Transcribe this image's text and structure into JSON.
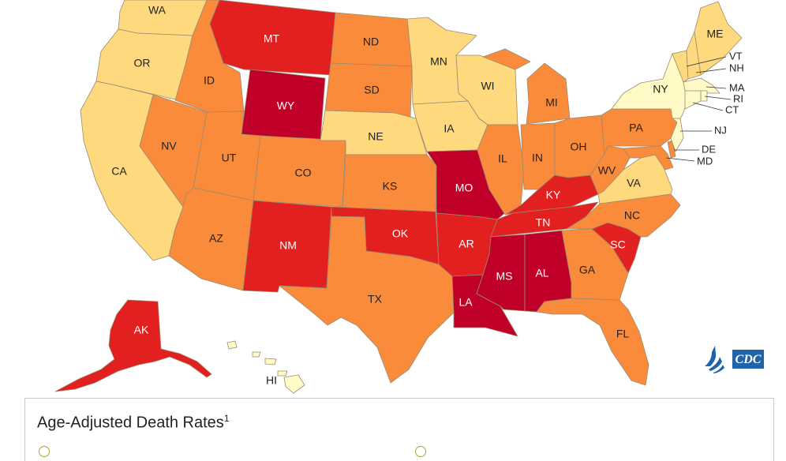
{
  "palette": {
    "c1": "#fffac6",
    "c2": "#ffd97d",
    "c3": "#f98b3b",
    "c4": "#e1201f",
    "c5": "#c1002a"
  },
  "states": [
    {
      "id": "WA",
      "label": "WA",
      "class": "c2"
    },
    {
      "id": "OR",
      "label": "OR",
      "class": "c2"
    },
    {
      "id": "CA",
      "label": "CA",
      "class": "c2"
    },
    {
      "id": "ID",
      "label": "ID",
      "class": "c3"
    },
    {
      "id": "NV",
      "label": "NV",
      "class": "c3"
    },
    {
      "id": "MT",
      "label": "MT",
      "class": "c4"
    },
    {
      "id": "WY",
      "label": "WY",
      "class": "c5"
    },
    {
      "id": "UT",
      "label": "UT",
      "class": "c3"
    },
    {
      "id": "CO",
      "label": "CO",
      "class": "c3"
    },
    {
      "id": "AZ",
      "label": "AZ",
      "class": "c3"
    },
    {
      "id": "NM",
      "label": "NM",
      "class": "c4"
    },
    {
      "id": "ND",
      "label": "ND",
      "class": "c3"
    },
    {
      "id": "SD",
      "label": "SD",
      "class": "c3"
    },
    {
      "id": "NE",
      "label": "NE",
      "class": "c2"
    },
    {
      "id": "KS",
      "label": "KS",
      "class": "c3"
    },
    {
      "id": "OK",
      "label": "OK",
      "class": "c4"
    },
    {
      "id": "TX",
      "label": "TX",
      "class": "c3"
    },
    {
      "id": "MN",
      "label": "MN",
      "class": "c2"
    },
    {
      "id": "IA",
      "label": "IA",
      "class": "c2"
    },
    {
      "id": "MO",
      "label": "MO",
      "class": "c5"
    },
    {
      "id": "AR",
      "label": "AR",
      "class": "c4"
    },
    {
      "id": "LA",
      "label": "LA",
      "class": "c5"
    },
    {
      "id": "WI",
      "label": "WI",
      "class": "c2"
    },
    {
      "id": "IL",
      "label": "IL",
      "class": "c3"
    },
    {
      "id": "MI",
      "label": "MI",
      "class": "c3"
    },
    {
      "id": "IN",
      "label": "IN",
      "class": "c3"
    },
    {
      "id": "OH",
      "label": "OH",
      "class": "c3"
    },
    {
      "id": "KY",
      "label": "KY",
      "class": "c4"
    },
    {
      "id": "TN",
      "label": "TN",
      "class": "c4"
    },
    {
      "id": "MS",
      "label": "MS",
      "class": "c5"
    },
    {
      "id": "AL",
      "label": "AL",
      "class": "c5"
    },
    {
      "id": "GA",
      "label": "GA",
      "class": "c3"
    },
    {
      "id": "FL",
      "label": "FL",
      "class": "c3"
    },
    {
      "id": "SC",
      "label": "SC",
      "class": "c4"
    },
    {
      "id": "NC",
      "label": "NC",
      "class": "c3"
    },
    {
      "id": "VA",
      "label": "VA",
      "class": "c2"
    },
    {
      "id": "WV",
      "label": "WV",
      "class": "c3"
    },
    {
      "id": "PA",
      "label": "PA",
      "class": "c3"
    },
    {
      "id": "NY",
      "label": "NY",
      "class": "c1"
    },
    {
      "id": "ME",
      "label": "ME",
      "class": "c2"
    },
    {
      "id": "VT",
      "label": "VT",
      "class": "c2"
    },
    {
      "id": "NH",
      "label": "NH",
      "class": "c2"
    },
    {
      "id": "MA",
      "label": "MA",
      "class": "c1"
    },
    {
      "id": "RI",
      "label": "RI",
      "class": "c1"
    },
    {
      "id": "CT",
      "label": "CT",
      "class": "c1"
    },
    {
      "id": "NJ",
      "label": "NJ",
      "class": "c1"
    },
    {
      "id": "DE",
      "label": "DE",
      "class": "c3"
    },
    {
      "id": "MD",
      "label": "MD",
      "class": "c3"
    },
    {
      "id": "AK",
      "label": "AK",
      "class": "c4"
    },
    {
      "id": "HI",
      "label": "HI",
      "class": "c1"
    }
  ],
  "legend": {
    "title": "Age-Adjusted Death Rates",
    "footnote_marker": "1"
  },
  "logo": {
    "text": "CDC",
    "icon": "hhs-eagle-icon"
  }
}
